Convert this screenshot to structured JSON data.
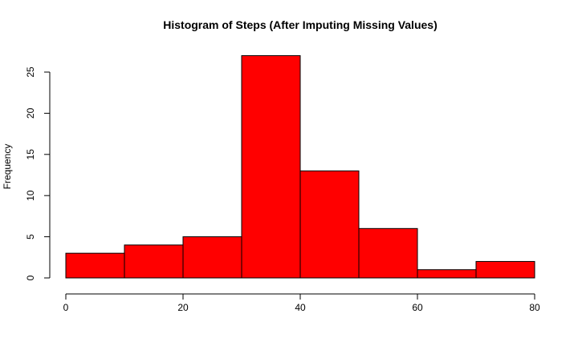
{
  "chart_data": {
    "type": "bar",
    "title": "Histogram of Steps (After Imputing Missing Values)",
    "xlabel": "",
    "ylabel": "Frequency",
    "bins": [
      {
        "from": 0,
        "to": 10,
        "count": 3
      },
      {
        "from": 10,
        "to": 20,
        "count": 4
      },
      {
        "from": 20,
        "to": 30,
        "count": 5
      },
      {
        "from": 30,
        "to": 40,
        "count": 27
      },
      {
        "from": 40,
        "to": 50,
        "count": 13
      },
      {
        "from": 50,
        "to": 60,
        "count": 6
      },
      {
        "from": 60,
        "to": 70,
        "count": 1
      },
      {
        "from": 70,
        "to": 80,
        "count": 2
      }
    ],
    "xlim": [
      0,
      80
    ],
    "ylim": [
      0,
      25
    ],
    "x_ticks": [
      0,
      20,
      40,
      60,
      80
    ],
    "y_ticks": [
      0,
      5,
      10,
      15,
      20,
      25
    ],
    "grid": false,
    "bar_color": "#ff0000",
    "border_color": "#000000"
  }
}
